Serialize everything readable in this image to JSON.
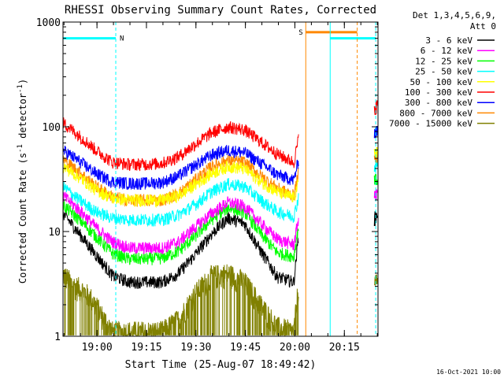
{
  "chart_data": {
    "type": "line",
    "title": "RHESSI Observing Summary Count Rates, Corrected",
    "xlabel": "Start Time (25-Aug-07 18:49:42)",
    "ylabel": "Corrected Count Rate (s-1 detector-1)",
    "ylabel_parts": {
      "a": "Corrected Count Rate (s",
      "b": "-1",
      "c": " detector",
      "d": "-1",
      "e": ")"
    },
    "y_scale": "log",
    "ylim": [
      1,
      1000
    ],
    "xlim_min": [
      0,
      95.5
    ],
    "x_ticks": [
      {
        "min": 10.3,
        "label": "19:00"
      },
      {
        "min": 25.3,
        "label": "19:15"
      },
      {
        "min": 40.3,
        "label": "19:30"
      },
      {
        "min": 55.3,
        "label": "19:45"
      },
      {
        "min": 70.3,
        "label": "20:00"
      },
      {
        "min": 85.3,
        "label": "20:15"
      }
    ],
    "y_ticks": [
      {
        "value": 1,
        "label": "1"
      },
      {
        "value": 10,
        "label": "10"
      },
      {
        "value": 100,
        "label": "100"
      },
      {
        "value": 1000,
        "label": "1000"
      }
    ],
    "legend": {
      "position": "right",
      "header": [
        "Det 1,3,4,5,6,9,",
        "Att 0"
      ]
    },
    "series": [
      {
        "name": "3 - 6 keV",
        "color": "#000000",
        "x": [
          0,
          5,
          10,
          15,
          20,
          25,
          30,
          35,
          40,
          45,
          50,
          55,
          60,
          65,
          70,
          71.5
        ],
        "y": [
          15,
          9.5,
          6,
          3.8,
          3.3,
          3.3,
          3.3,
          4,
          6,
          9.5,
          13.5,
          12,
          6.5,
          3.7,
          3.3,
          10
        ]
      },
      {
        "name": "6 - 12 keV",
        "color": "#ff00ff",
        "x": [
          0,
          5,
          10,
          15,
          20,
          25,
          30,
          35,
          40,
          45,
          50,
          55,
          60,
          65,
          70,
          71.5
        ],
        "y": [
          22,
          16,
          11,
          8,
          7,
          7,
          7,
          8,
          11,
          15,
          19,
          17.5,
          12,
          8.5,
          7.5,
          14
        ]
      },
      {
        "name": "12 - 25 keV",
        "color": "#00ff00",
        "x": [
          0,
          5,
          10,
          15,
          20,
          25,
          30,
          35,
          40,
          45,
          50,
          55,
          60,
          65,
          70,
          71.5
        ],
        "y": [
          18,
          13,
          9,
          6.2,
          5.5,
          5.5,
          5.6,
          6.5,
          9,
          13,
          17,
          15.5,
          9.5,
          6.3,
          5.8,
          12
        ]
      },
      {
        "name": "25 - 50 keV",
        "color": "#00ffff",
        "x": [
          0,
          5,
          10,
          15,
          20,
          25,
          30,
          35,
          40,
          45,
          50,
          55,
          60,
          65,
          70,
          71.5
        ],
        "y": [
          27,
          20,
          15.5,
          13.5,
          13,
          13,
          13,
          14.5,
          18,
          24,
          28.5,
          27,
          20,
          15.5,
          14,
          22
        ]
      },
      {
        "name": "50 - 100 keV",
        "color": "#ffff00",
        "x": [
          0,
          5,
          10,
          15,
          20,
          25,
          30,
          35,
          40,
          45,
          50,
          55,
          60,
          65,
          70,
          71.5
        ],
        "y": [
          42,
          33,
          25,
          21,
          20,
          20,
          20,
          22,
          28,
          36,
          42,
          40,
          30,
          24,
          21,
          30
        ]
      },
      {
        "name": "100 - 300 keV",
        "color": "#ff0000",
        "x": [
          0,
          5,
          10,
          15,
          20,
          25,
          30,
          35,
          40,
          45,
          50,
          55,
          60,
          65,
          70,
          71.5
        ],
        "y": [
          110,
          82,
          60,
          46,
          44,
          44,
          45,
          52,
          68,
          88,
          100,
          94,
          72,
          55,
          46,
          80
        ]
      },
      {
        "name": "300 - 800 keV",
        "color": "#0000ff",
        "x": [
          0,
          5,
          10,
          15,
          20,
          25,
          30,
          35,
          40,
          45,
          50,
          55,
          60,
          65,
          70,
          71.5
        ],
        "y": [
          60,
          47,
          36,
          30,
          29,
          29,
          29.5,
          34,
          43,
          54,
          60,
          57,
          45,
          35,
          31,
          50
        ]
      },
      {
        "name": "800 - 7000 keV",
        "color": "#ff8800",
        "x": [
          0,
          5,
          10,
          15,
          20,
          25,
          30,
          35,
          40,
          45,
          50,
          55,
          60,
          65,
          70,
          71.5
        ],
        "y": [
          49,
          37,
          27,
          21.5,
          20,
          20,
          20,
          23,
          31,
          42,
          48,
          46,
          34,
          26,
          22,
          38
        ]
      },
      {
        "name": "7000 - 15000 keV",
        "color": "#808000",
        "x": [
          0,
          3,
          6,
          9,
          12,
          15,
          20,
          25,
          30,
          35,
          40,
          45,
          50,
          55,
          60,
          65,
          70,
          71.5
        ],
        "y": [
          3.6,
          2.8,
          2.5,
          2,
          1.4,
          1,
          1,
          1,
          1,
          1.3,
          2.3,
          3.4,
          3.6,
          3,
          1.8,
          1.1,
          1,
          3
        ]
      }
    ],
    "post_series": {
      "x": [
        94.5,
        95.2
      ],
      "values": {
        "3 - 6 keV": [
          13,
          15
        ],
        "6 - 12 keV": [
          21,
          23
        ],
        "12 - 25 keV": [
          30,
          32
        ],
        "25 - 50 keV": [
          42,
          45
        ],
        "50 - 100 keV": [
          55,
          60
        ],
        "100 - 300 keV": [
          150,
          160
        ],
        "300 - 800 keV": [
          88,
          92
        ],
        "800 - 7000 keV": [
          50,
          54
        ],
        "7000 - 15000 keV": [
          3.3,
          3.6
        ]
      }
    },
    "flag_bars": [
      {
        "color": "#00ffff",
        "x0": 0,
        "x1": 16,
        "y": 700,
        "label": "N"
      },
      {
        "color": "#ff8800",
        "x0": 73.6,
        "x1": 89.2,
        "y": 800,
        "label": "S"
      },
      {
        "color": "#00ffff",
        "x0": 81,
        "x1": 94.8,
        "y": 700,
        "label": ""
      }
    ],
    "vlines": [
      {
        "color": "#00ffff",
        "x": 16,
        "style": "dashed"
      },
      {
        "color": "#00ffff",
        "x": 81,
        "style": "solid"
      },
      {
        "color": "#00ffff",
        "x": 94.8,
        "style": "dashed"
      },
      {
        "color": "#ff8800",
        "x": 73.6,
        "style": "solid"
      },
      {
        "color": "#ff8800",
        "x": 89.2,
        "style": "dashed"
      }
    ]
  },
  "footer": {
    "timestamp": "16-Oct-2021 10:00"
  }
}
